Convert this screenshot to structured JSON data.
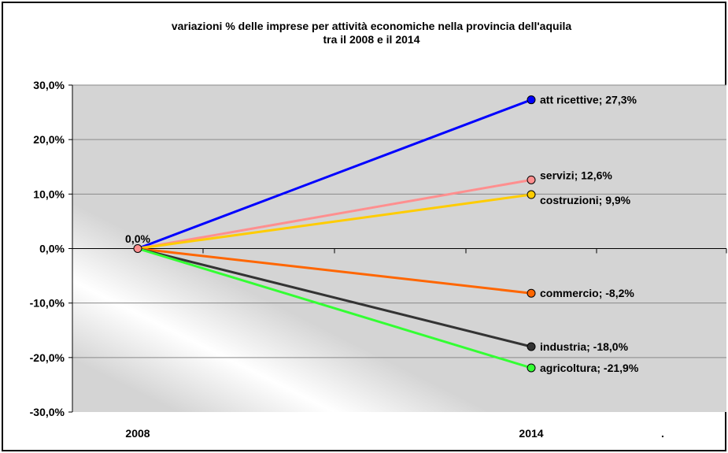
{
  "chart_data": {
    "type": "line",
    "title_line1": "variazioni % delle imprese per attività economiche nella provincia dell'aquila",
    "title_line2": "tra il 2008 e il 2014",
    "xlabel": "",
    "ylabel": "",
    "categories": [
      "2008",
      "2014"
    ],
    "extra_tick": ".",
    "ylim": [
      -30,
      30
    ],
    "yticks": [
      "30,0%",
      "20,0%",
      "10,0%",
      "0,0%",
      "-10,0%",
      "-20,0%",
      "-30,0%"
    ],
    "ytick_values": [
      30,
      20,
      10,
      0,
      -10,
      -20,
      -30
    ],
    "grid": true,
    "origin_label": "0,0%",
    "series": [
      {
        "name": "att ricettive",
        "values": [
          0,
          27.3
        ],
        "label": "att ricettive; 27,3%",
        "color": "#0000ff"
      },
      {
        "name": "servizi",
        "values": [
          0,
          12.6
        ],
        "label": "servizi; 12,6%",
        "color": "#ff8f8f"
      },
      {
        "name": "costruzioni",
        "values": [
          0,
          9.9
        ],
        "label": "costruzioni; 9,9%",
        "color": "#ffcc00"
      },
      {
        "name": "commercio",
        "values": [
          0,
          -8.2
        ],
        "label": "commercio; -8,2%",
        "color": "#ff6600"
      },
      {
        "name": "industria",
        "values": [
          0,
          -18.0
        ],
        "label": "industria; -18,0%",
        "color": "#333333"
      },
      {
        "name": "agricoltura",
        "values": [
          0,
          -21.9
        ],
        "label": "agricoltura; -21,9%",
        "color": "#33ff33"
      }
    ]
  }
}
